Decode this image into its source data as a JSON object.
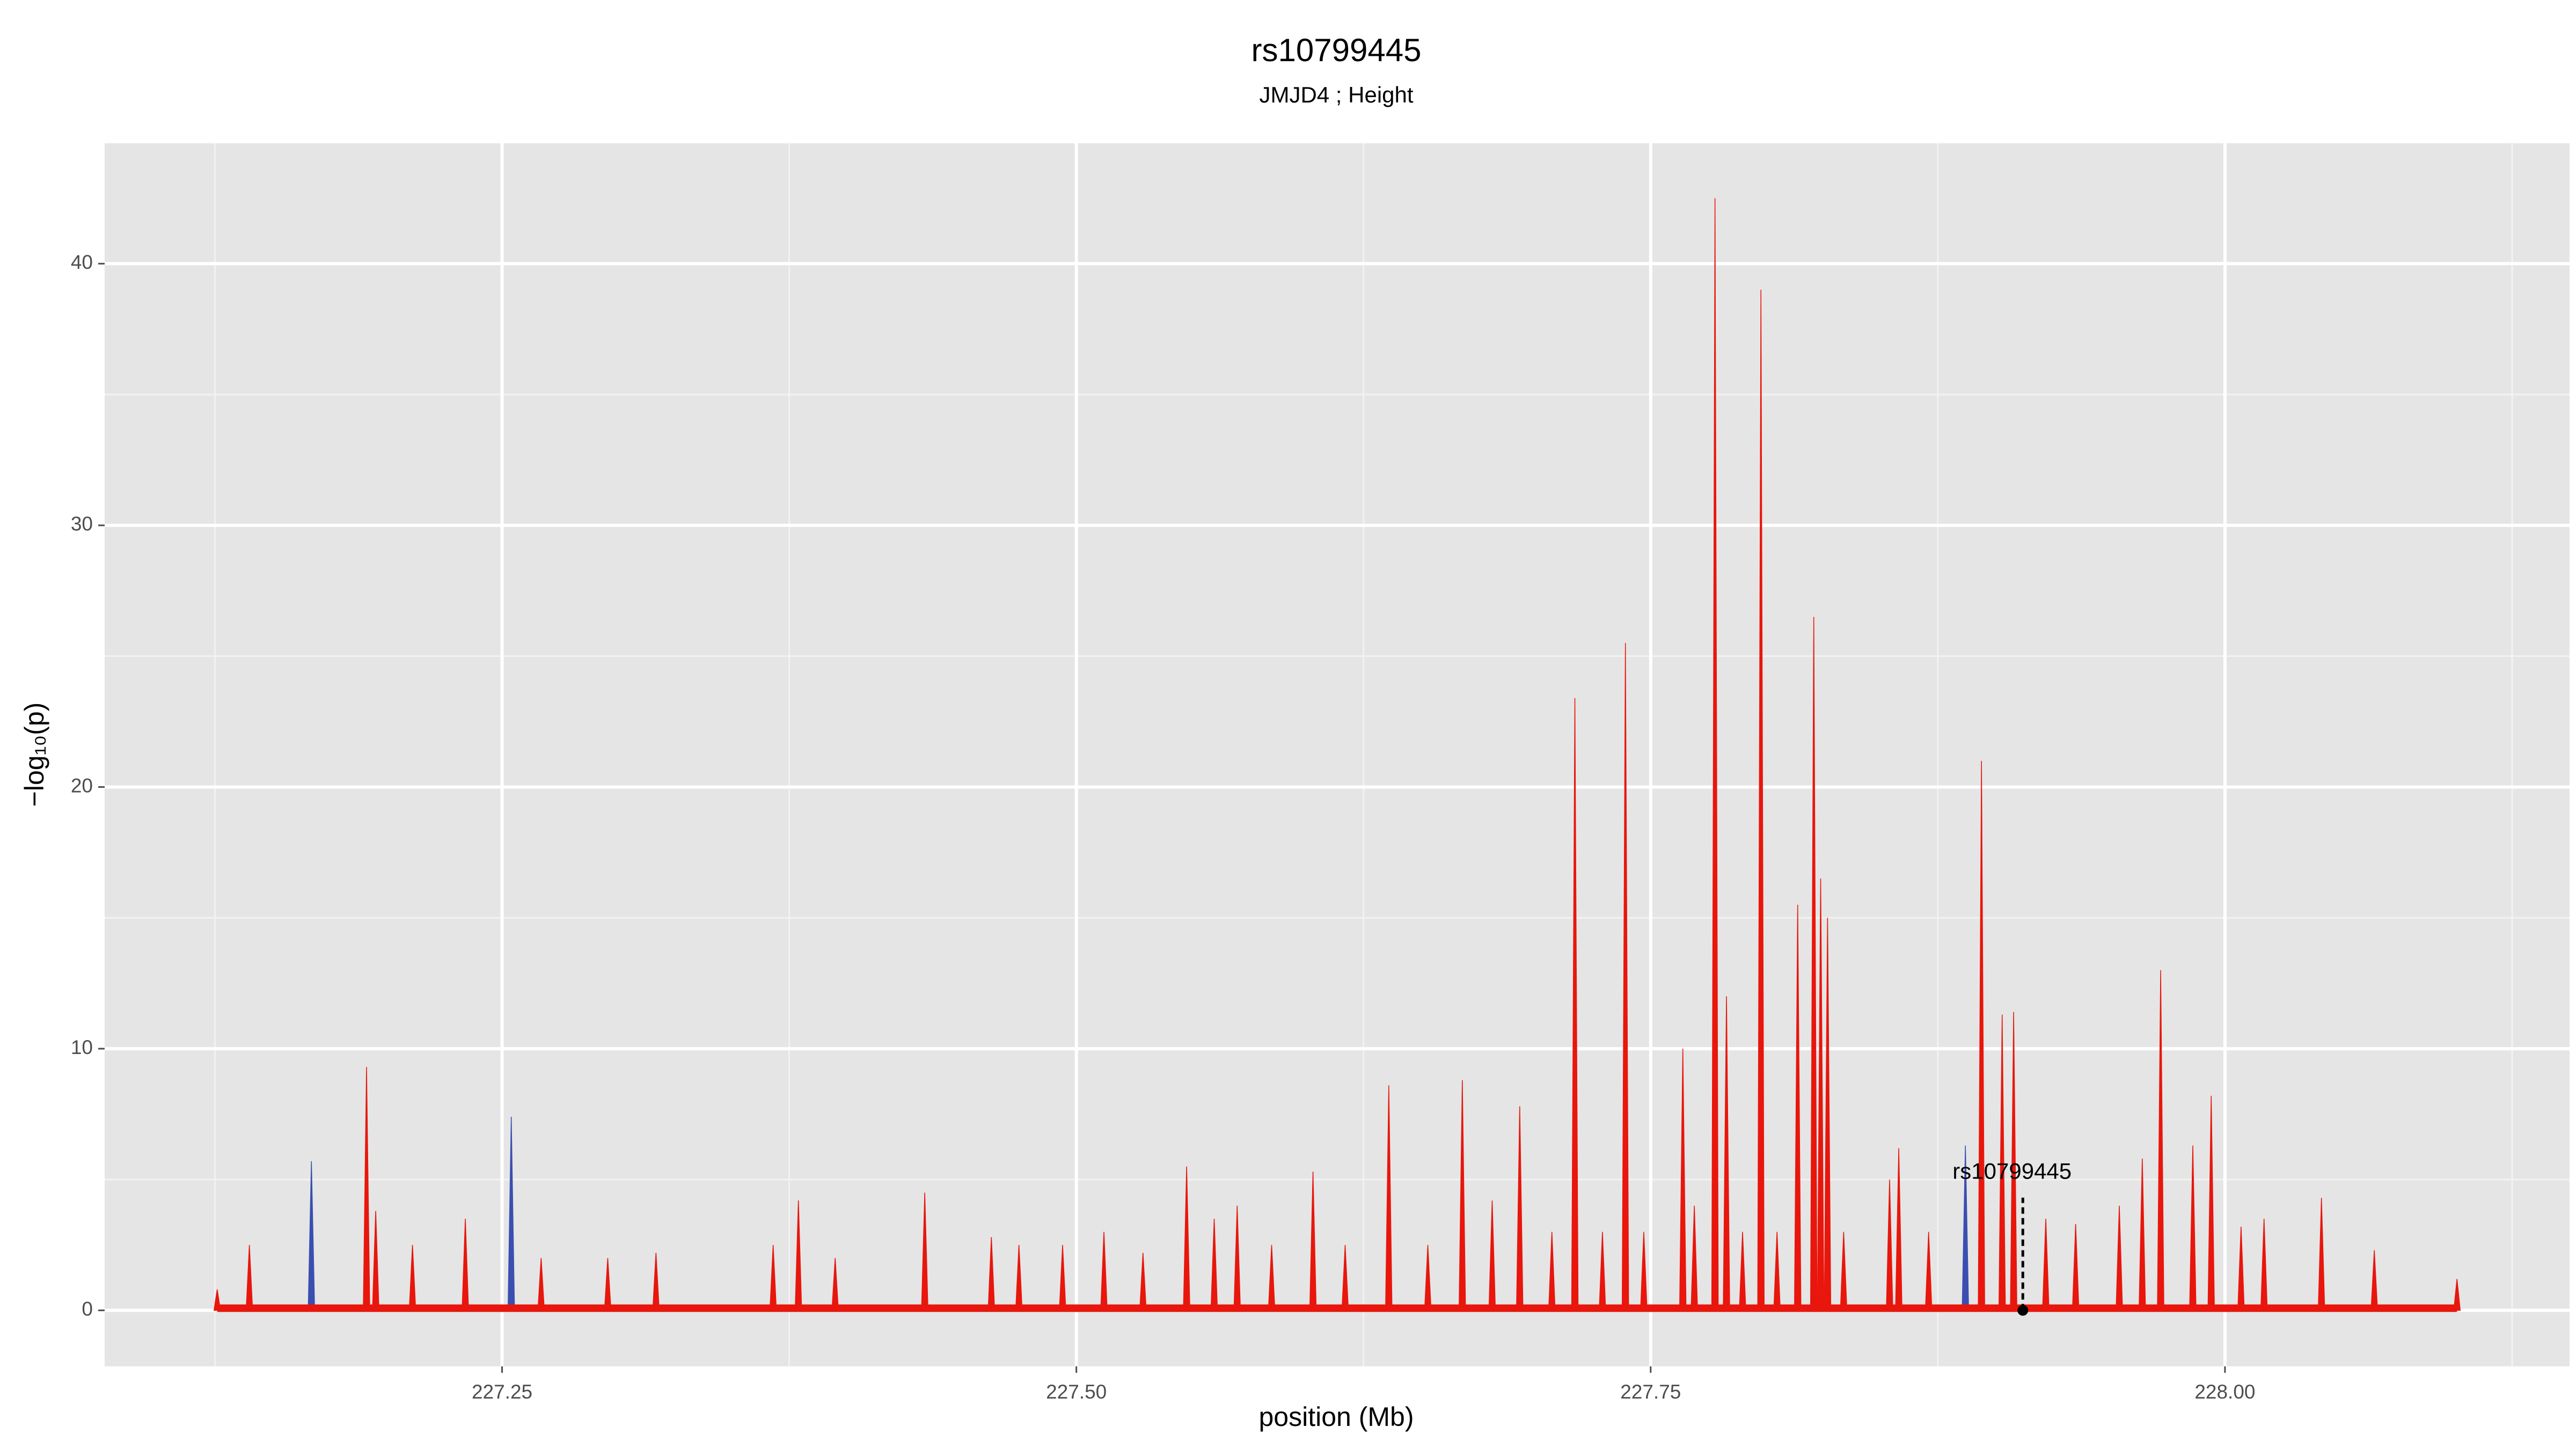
{
  "chart_data": {
    "type": "spike",
    "title": "rs10799445",
    "subtitle": "JMJD4 ; Height",
    "x_label": "position (Mb)",
    "y_label": "−log₁₀(p)",
    "xlim": [
      227.077,
      228.15
    ],
    "ylim": [
      -2.14,
      44.6
    ],
    "xticks": [
      {
        "value": 227.25,
        "label": "227.25"
      },
      {
        "value": 227.5,
        "label": "227.50"
      },
      {
        "value": 227.75,
        "label": "227.75"
      },
      {
        "value": 228,
        "label": "228.00"
      }
    ],
    "yticks": [
      0,
      10,
      20,
      30,
      40
    ],
    "grid": true,
    "series": [
      {
        "name": "red",
        "color": "#e8160c",
        "x": [
          227.126,
          227.14,
          227.191,
          227.195,
          227.211,
          227.234,
          227.267,
          227.296,
          227.317,
          227.368,
          227.379,
          227.395,
          227.434,
          227.463,
          227.475,
          227.494,
          227.512,
          227.529,
          227.548,
          227.56,
          227.57,
          227.585,
          227.603,
          227.617,
          227.636,
          227.653,
          227.668,
          227.681,
          227.693,
          227.707,
          227.717,
          227.729,
          227.739,
          227.747,
          227.764,
          227.769,
          227.778,
          227.783,
          227.79,
          227.798,
          227.805,
          227.814,
          227.821,
          227.824,
          227.827,
          227.834,
          227.854,
          227.858,
          227.871,
          227.894,
          227.903,
          227.908,
          227.922,
          227.935,
          227.954,
          227.964,
          227.972,
          227.986,
          227.994,
          228.007,
          228.017,
          228.042,
          228.065,
          228.101
        ],
        "values": [
          0.8,
          2.5,
          9.3,
          3.8,
          2.5,
          3.5,
          2,
          2,
          2.2,
          2.5,
          4.2,
          2,
          4.5,
          2.8,
          2.5,
          2.5,
          3,
          2.2,
          5.5,
          3.5,
          4,
          2.5,
          5.3,
          2.5,
          8.6,
          2.5,
          8.8,
          4.2,
          7.8,
          3,
          23.4,
          3,
          25.5,
          3,
          10,
          4,
          42.5,
          12,
          3,
          39,
          3,
          15.5,
          26.5,
          16.5,
          15,
          3,
          5,
          6.2,
          3,
          21,
          11.3,
          11.4,
          3.5,
          3.3,
          4,
          5.8,
          13,
          6.3,
          8.2,
          3.2,
          3.5,
          4.3,
          2.3,
          1.2
        ]
      },
      {
        "name": "blue",
        "color": "#3a4fb0",
        "x": [
          227.167,
          227.254,
          227.887
        ],
        "values": [
          5.7,
          7.4,
          6.3
        ]
      }
    ],
    "annotation": {
      "label": "rs10799445",
      "x": 227.912,
      "y": 0
    }
  }
}
